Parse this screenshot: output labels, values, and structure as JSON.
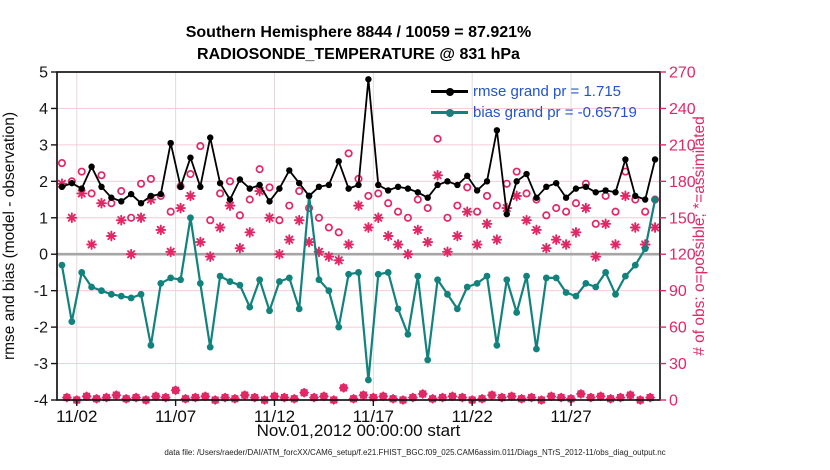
{
  "figure": {
    "title_line1": "Southern Hemisphere 8844 / 10059 = 87.921%",
    "title_line2": "RADIOSONDE_TEMPERATURE @ 831 hPa",
    "xlabel": "Nov.01,2012 00:00:00 start",
    "ylabel_left": "rmse and bias (model - observation)",
    "ylabel_right": "# of obs: o=possible; *=assimilated",
    "caption": "data file: /Users/raeder/DAI/ATM_forcXX/CAM6_setup/f.e21.FHIST_BGC.f09_025.CAM6assim.011/Diags_NTrS_2012-11/obs_diag_output.nc"
  },
  "legend": {
    "rmse_label": "rmse grand pr = 1.715",
    "bias_label": "bias grand pr = -0.65719",
    "rmse_value": 1.715,
    "bias_value": -0.65719
  },
  "colors": {
    "rmse": "#000000",
    "bias": "#12827c",
    "obs": "#e22765",
    "legend_text": "#2255cc",
    "grid_horizontal": "#f6ccd6",
    "grid_vertical": "#e2dada",
    "zero_line": "#a6a6a6",
    "axis_box": "#151515"
  },
  "chart_data": {
    "type": "line",
    "title": "Southern Hemisphere 8844 / 10059 = 87.921% | RADIOSONDE_TEMPERATURE @ 831 hPa",
    "x_axis": {
      "label": "Nov.01,2012 00:00:00 start",
      "range_days": [
        0,
        30.5
      ],
      "tick_days": [
        1,
        6,
        11,
        16,
        21,
        26
      ],
      "tick_labels": [
        "11/02",
        "11/07",
        "11/12",
        "11/17",
        "11/22",
        "11/27"
      ]
    },
    "y_left": {
      "label": "rmse and bias (model - observation)",
      "range": [
        -4,
        5
      ],
      "ticks": [
        5,
        4,
        3,
        2,
        1,
        0,
        -1,
        -2,
        -3,
        -4
      ]
    },
    "y_right": {
      "label": "# of obs: o=possible; *=assimilated",
      "range": [
        0,
        270
      ],
      "ticks": [
        270,
        240,
        210,
        180,
        150,
        120,
        90,
        60,
        30,
        0
      ]
    },
    "x_days": [
      0.25,
      0.75,
      1.25,
      1.75,
      2.25,
      2.75,
      3.25,
      3.75,
      4.25,
      4.75,
      5.25,
      5.75,
      6.25,
      6.75,
      7.25,
      7.75,
      8.25,
      8.75,
      9.25,
      9.75,
      10.25,
      10.75,
      11.25,
      11.75,
      12.25,
      12.75,
      13.25,
      13.75,
      14.25,
      14.75,
      15.25,
      15.75,
      16.25,
      16.75,
      17.25,
      17.75,
      18.25,
      18.75,
      19.25,
      19.75,
      20.25,
      20.75,
      21.25,
      21.75,
      22.25,
      22.75,
      23.25,
      23.75,
      24.25,
      24.75,
      25.25,
      25.75,
      26.25,
      26.75,
      27.25,
      27.75,
      28.25,
      28.75,
      29.25,
      29.75,
      30.25
    ],
    "series": [
      {
        "name": "rmse",
        "axis": "left",
        "values": [
          1.85,
          1.95,
          1.8,
          2.4,
          1.85,
          1.55,
          1.45,
          1.65,
          1.4,
          1.6,
          1.65,
          3.05,
          1.85,
          2.65,
          1.85,
          3.2,
          1.95,
          1.5,
          2.05,
          1.8,
          1.9,
          1.45,
          1.8,
          2.3,
          1.95,
          1.6,
          1.85,
          1.9,
          2.55,
          1.8,
          1.9,
          4.8,
          1.9,
          1.75,
          1.85,
          1.8,
          1.7,
          1.55,
          1.9,
          2.0,
          1.9,
          2.15,
          1.75,
          2.0,
          3.4,
          1.1,
          2.0,
          2.2,
          1.55,
          1.85,
          1.95,
          1.55,
          1.8,
          1.85,
          1.7,
          1.75,
          1.7,
          2.6,
          1.6,
          1.5,
          2.6
        ]
      },
      {
        "name": "bias",
        "axis": "left",
        "values": [
          -0.3,
          -1.85,
          -0.5,
          -0.9,
          -1.0,
          -1.1,
          -1.15,
          -1.2,
          -1.1,
          -2.5,
          -0.8,
          -0.65,
          -0.7,
          1.0,
          -0.8,
          -2.55,
          -0.6,
          -0.75,
          -0.85,
          -1.45,
          -0.7,
          -1.55,
          -0.75,
          -0.65,
          -1.5,
          1.6,
          -0.7,
          -1.0,
          -2.0,
          -0.55,
          -0.5,
          -3.45,
          -0.55,
          -0.5,
          -1.5,
          -2.2,
          -0.6,
          -2.9,
          -0.7,
          -1.1,
          -1.5,
          -0.9,
          -0.8,
          -0.6,
          -2.5,
          -0.7,
          -1.6,
          -0.6,
          -2.6,
          -0.65,
          -0.65,
          -1.05,
          -1.15,
          -0.8,
          -0.9,
          -0.5,
          -1.1,
          -0.6,
          -0.3,
          0.15,
          1.5
        ]
      },
      {
        "name": "possible",
        "axis": "right",
        "marker": "open-circle",
        "values": [
          195,
          180,
          188,
          170,
          185,
          162,
          172,
          150,
          178,
          182,
          168,
          155,
          176,
          186,
          209,
          148,
          170,
          180,
          152,
          165,
          190,
          175,
          148,
          160,
          172,
          158,
          150,
          142,
          138,
          203,
          182,
          168,
          170,
          162,
          155,
          150,
          165,
          158,
          215,
          150,
          160,
          175,
          155,
          168,
          160,
          178,
          188,
          170,
          165,
          152,
          158,
          155,
          162,
          178,
          145,
          168,
          155,
          188,
          165,
          155,
          165
        ]
      },
      {
        "name": "assimilated",
        "axis": "right",
        "marker": "asterisk",
        "values": [
          178,
          150,
          170,
          128,
          162,
          135,
          148,
          120,
          150,
          165,
          140,
          122,
          158,
          168,
          130,
          118,
          142,
          160,
          125,
          138,
          172,
          150,
          120,
          132,
          148,
          130,
          122,
          118,
          115,
          128,
          160,
          142,
          150,
          135,
          128,
          120,
          140,
          130,
          185,
          122,
          135,
          155,
          128,
          145,
          132,
          158,
          168,
          148,
          140,
          125,
          132,
          128,
          138,
          158,
          118,
          145,
          128,
          168,
          142,
          128,
          142
        ]
      }
    ],
    "low_count_bins": {
      "axis": "right",
      "x_days": [
        0.5,
        1,
        1.5,
        2,
        2.5,
        3,
        3.5,
        4,
        4.5,
        5,
        5.5,
        6,
        6.5,
        7,
        7.5,
        8,
        8.5,
        9,
        9.5,
        10,
        10.5,
        11,
        11.5,
        12,
        12.5,
        13,
        13.5,
        14,
        14.5,
        15,
        15.5,
        16,
        16.5,
        17,
        17.5,
        18,
        18.5,
        19,
        19.5,
        20,
        20.5,
        21,
        21.5,
        22,
        22.5,
        23,
        23.5,
        24,
        24.5,
        25,
        25.5,
        26,
        26.5,
        27,
        27.5,
        28,
        28.5,
        29,
        29.5,
        30
      ],
      "counts": [
        2,
        0,
        3,
        1,
        2,
        4,
        1,
        2,
        0,
        3,
        2,
        8,
        1,
        2,
        3,
        0,
        2,
        1,
        4,
        2,
        0,
        3,
        2,
        1,
        6,
        2,
        3,
        0,
        10,
        1,
        4,
        2,
        3,
        1,
        0,
        2,
        5,
        1,
        2,
        3,
        2,
        0,
        1,
        4,
        2,
        3,
        1,
        2,
        0,
        3,
        2,
        1,
        5,
        2,
        3,
        1,
        2,
        4,
        0,
        2
      ]
    }
  }
}
